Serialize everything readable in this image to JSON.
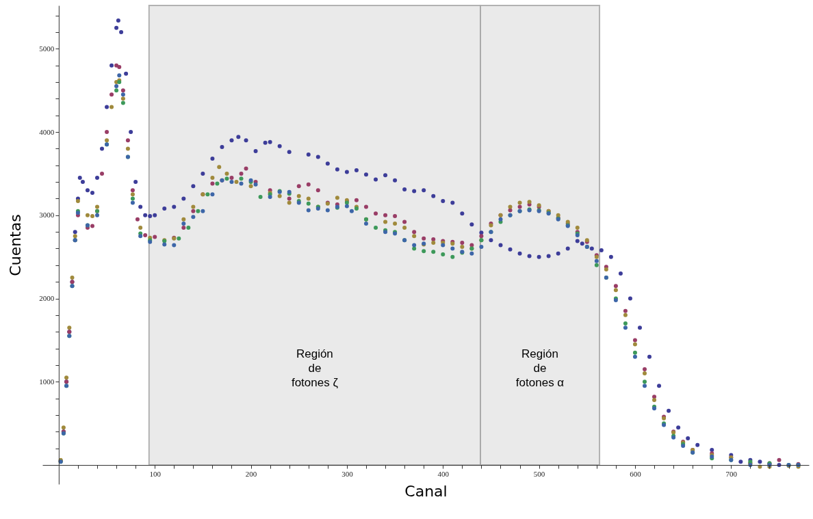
{
  "chart_data": {
    "type": "scatter",
    "xlabel": "Canal",
    "ylabel": "Cuentas",
    "marker": "circle",
    "grid": false,
    "xlim": [
      -17,
      781
    ],
    "ylim": [
      -230,
      5520
    ],
    "xticks": [
      {
        "value": 20,
        "label": null
      },
      {
        "value": 40,
        "label": null
      },
      {
        "value": 60,
        "label": null
      },
      {
        "value": 80,
        "label": null
      },
      100,
      {
        "value": 120,
        "label": null
      },
      {
        "value": 140,
        "label": null
      },
      {
        "value": 160,
        "label": null
      },
      {
        "value": 180,
        "label": null
      },
      200,
      {
        "value": 220,
        "label": null
      },
      {
        "value": 240,
        "label": null
      },
      {
        "value": 260,
        "label": null
      },
      {
        "value": 280,
        "label": null
      },
      300,
      {
        "value": 320,
        "label": null
      },
      {
        "value": 340,
        "label": null
      },
      {
        "value": 360,
        "label": null
      },
      {
        "value": 380,
        "label": null
      },
      400,
      {
        "value": 420,
        "label": null
      },
      {
        "value": 440,
        "label": null
      },
      {
        "value": 460,
        "label": null
      },
      {
        "value": 480,
        "label": null
      },
      500,
      {
        "value": 520,
        "label": null
      },
      {
        "value": 540,
        "label": null
      },
      {
        "value": 560,
        "label": null
      },
      {
        "value": 580,
        "label": null
      },
      600,
      {
        "value": 620,
        "label": null
      },
      {
        "value": 640,
        "label": null
      },
      {
        "value": 660,
        "label": null
      },
      {
        "value": 680,
        "label": null
      },
      700,
      {
        "value": 720,
        "label": null
      },
      {
        "value": 740,
        "label": null
      },
      {
        "value": 760,
        "label": null
      }
    ],
    "yticks": [
      {
        "value": 200,
        "label": null
      },
      {
        "value": 400,
        "label": null
      },
      {
        "value": 600,
        "label": null
      },
      {
        "value": 800,
        "label": null
      },
      1000,
      {
        "value": 1200,
        "label": null
      },
      {
        "value": 1400,
        "label": null
      },
      {
        "value": 1600,
        "label": null
      },
      {
        "value": 1800,
        "label": null
      },
      2000,
      {
        "value": 2200,
        "label": null
      },
      {
        "value": 2400,
        "label": null
      },
      {
        "value": 2600,
        "label": null
      },
      {
        "value": 2800,
        "label": null
      },
      3000,
      {
        "value": 3200,
        "label": null
      },
      {
        "value": 3400,
        "label": null
      },
      {
        "value": 3600,
        "label": null
      },
      {
        "value": 3800,
        "label": null
      },
      4000,
      {
        "value": 4200,
        "label": null
      },
      {
        "value": 4400,
        "label": null
      },
      {
        "value": 4600,
        "label": null
      },
      {
        "value": 4800,
        "label": null
      },
      5000,
      {
        "value": 5200,
        "label": null
      },
      {
        "value": 5400,
        "label": null
      }
    ],
    "bands": [
      {
        "axis": "x",
        "from": 94,
        "to": 439,
        "label": "Región\nde\nfotones ζ",
        "color": "#e8e8e8"
      },
      {
        "axis": "x",
        "from": 439,
        "to": 563,
        "label": "Región\nde\nfotones α",
        "color": "#e8e8e8"
      }
    ],
    "series": [
      {
        "color": "#3d3d99",
        "x": [
          2,
          5,
          8,
          11,
          14,
          17,
          20,
          22,
          25,
          30,
          35,
          40,
          45,
          50,
          55,
          60,
          62,
          65,
          70,
          75,
          80,
          85,
          90,
          95,
          100,
          110,
          120,
          130,
          140,
          150,
          160,
          170,
          180,
          187,
          195,
          205,
          215,
          220,
          230,
          240,
          260,
          270,
          280,
          290,
          300,
          310,
          320,
          330,
          340,
          350,
          360,
          370,
          380,
          390,
          400,
          410,
          420,
          430,
          440,
          450,
          460,
          470,
          480,
          490,
          500,
          510,
          520,
          530,
          540,
          545,
          555,
          565,
          575,
          585,
          595,
          605,
          615,
          625,
          635,
          645,
          655,
          665,
          680,
          700,
          710,
          720,
          730,
          740,
          750,
          770
        ],
        "values": [
          50,
          400,
          1000,
          1600,
          2200,
          2800,
          3200,
          3450,
          3400,
          3300,
          3270,
          3450,
          3800,
          4300,
          4800,
          5250,
          5340,
          5200,
          4700,
          4000,
          3400,
          3100,
          3000,
          2990,
          3000,
          3080,
          3100,
          3200,
          3350,
          3500,
          3680,
          3820,
          3900,
          3940,
          3900,
          3770,
          3870,
          3880,
          3830,
          3760,
          3730,
          3700,
          3620,
          3550,
          3520,
          3540,
          3490,
          3430,
          3480,
          3420,
          3310,
          3290,
          3300,
          3230,
          3170,
          3150,
          3020,
          2890,
          2790,
          2700,
          2640,
          2590,
          2540,
          2510,
          2500,
          2510,
          2540,
          2600,
          2690,
          2660,
          2600,
          2580,
          2500,
          2300,
          2000,
          1650,
          1300,
          950,
          650,
          450,
          320,
          240,
          180,
          120,
          40,
          60,
          40,
          10,
          0,
          0
        ]
      },
      {
        "color": "#993d66",
        "x": [
          2,
          5,
          8,
          11,
          14,
          17,
          20,
          30,
          35,
          40,
          45,
          50,
          55,
          60,
          63,
          67,
          72,
          77,
          82,
          90,
          100,
          120,
          130,
          140,
          150,
          160,
          170,
          180,
          190,
          195,
          205,
          220,
          240,
          250,
          260,
          270,
          280,
          290,
          300,
          310,
          320,
          330,
          340,
          350,
          360,
          370,
          380,
          390,
          400,
          410,
          420,
          430,
          440,
          450,
          460,
          470,
          480,
          490,
          500,
          510,
          520,
          530,
          540,
          550,
          560,
          570,
          580,
          590,
          600,
          610,
          620,
          630,
          640,
          650,
          660,
          680,
          700,
          720,
          740,
          750,
          770
        ],
        "values": [
          50,
          400,
          1000,
          1600,
          2200,
          2700,
          3000,
          2850,
          2870,
          3050,
          3500,
          4000,
          4450,
          4800,
          4780,
          4500,
          3900,
          3300,
          2950,
          2760,
          2740,
          2730,
          2850,
          3050,
          3250,
          3380,
          3420,
          3450,
          3500,
          3560,
          3400,
          3300,
          3200,
          3350,
          3370,
          3300,
          3150,
          3130,
          3170,
          3180,
          3100,
          3020,
          3000,
          2990,
          2920,
          2800,
          2720,
          2710,
          2690,
          2680,
          2670,
          2640,
          2750,
          2900,
          3000,
          3060,
          3100,
          3130,
          3100,
          3050,
          2970,
          2900,
          2800,
          2680,
          2520,
          2380,
          2150,
          1850,
          1500,
          1150,
          820,
          580,
          400,
          280,
          180,
          140,
          90,
          20,
          20,
          60,
          10
        ]
      },
      {
        "color": "#a08a3c",
        "x": [
          2,
          5,
          8,
          11,
          14,
          17,
          20,
          30,
          35,
          40,
          50,
          55,
          60,
          63,
          67,
          72,
          77,
          85,
          95,
          110,
          120,
          130,
          140,
          150,
          160,
          167,
          175,
          185,
          200,
          220,
          230,
          240,
          250,
          260,
          270,
          280,
          290,
          300,
          310,
          320,
          340,
          350,
          360,
          370,
          380,
          390,
          400,
          410,
          420,
          430,
          440,
          450,
          460,
          470,
          480,
          490,
          500,
          510,
          520,
          530,
          540,
          550,
          560,
          570,
          580,
          590,
          600,
          610,
          620,
          630,
          640,
          650,
          660,
          680,
          700,
          720,
          730,
          740,
          760,
          770
        ],
        "values": [
          60,
          450,
          1050,
          1650,
          2250,
          2750,
          3170,
          3000,
          2990,
          3100,
          3900,
          4300,
          4600,
          4620,
          4400,
          3800,
          3250,
          2850,
          2730,
          2700,
          2720,
          2950,
          3100,
          3250,
          3450,
          3580,
          3500,
          3400,
          3350,
          3270,
          3230,
          3150,
          3230,
          3200,
          3100,
          3140,
          3210,
          3180,
          3100,
          2950,
          2920,
          2900,
          2850,
          2750,
          2650,
          2670,
          2670,
          2660,
          2620,
          2600,
          2700,
          2880,
          3000,
          3100,
          3150,
          3160,
          3120,
          3050,
          3000,
          2920,
          2850,
          2700,
          2500,
          2350,
          2100,
          1800,
          1450,
          1100,
          780,
          560,
          390,
          270,
          180,
          120,
          90,
          20,
          -20,
          -20,
          -10,
          -20
        ]
      },
      {
        "color": "#3d995a",
        "x": [
          2,
          5,
          8,
          11,
          14,
          17,
          20,
          30,
          40,
          50,
          60,
          63,
          67,
          72,
          77,
          85,
          95,
          110,
          125,
          135,
          145,
          155,
          165,
          175,
          190,
          200,
          210,
          220,
          230,
          240,
          250,
          260,
          270,
          290,
          300,
          310,
          320,
          330,
          340,
          350,
          360,
          370,
          380,
          390,
          400,
          410,
          420,
          430,
          440,
          450,
          460,
          470,
          480,
          490,
          500,
          510,
          520,
          530,
          540,
          550,
          560,
          570,
          580,
          590,
          600,
          610,
          620,
          630,
          640,
          650,
          660,
          680,
          700,
          720,
          740,
          760,
          770
        ],
        "values": [
          40,
          380,
          950,
          1550,
          2150,
          2700,
          3050,
          2880,
          3050,
          3850,
          4500,
          4600,
          4350,
          3700,
          3200,
          2780,
          2700,
          2690,
          2720,
          2850,
          3050,
          3250,
          3380,
          3440,
          3440,
          3400,
          3220,
          3250,
          3290,
          3260,
          3170,
          3140,
          3100,
          3090,
          3150,
          3080,
          2950,
          2850,
          2820,
          2800,
          2700,
          2600,
          2570,
          2560,
          2530,
          2500,
          2550,
          2600,
          2700,
          2800,
          2920,
          3000,
          3050,
          3070,
          3060,
          3030,
          2960,
          2880,
          2780,
          2620,
          2400,
          2250,
          2000,
          1700,
          1350,
          1000,
          700,
          500,
          350,
          250,
          150,
          80,
          60,
          40,
          20,
          0,
          0
        ]
      },
      {
        "color": "#3d66a8",
        "x": [
          2,
          5,
          8,
          11,
          14,
          17,
          20,
          30,
          40,
          50,
          60,
          63,
          67,
          72,
          77,
          85,
          95,
          110,
          120,
          130,
          140,
          150,
          160,
          170,
          180,
          190,
          200,
          205,
          220,
          230,
          240,
          250,
          260,
          270,
          280,
          290,
          300,
          305,
          320,
          340,
          350,
          360,
          370,
          380,
          400,
          410,
          420,
          430,
          440,
          450,
          460,
          470,
          480,
          490,
          500,
          510,
          520,
          530,
          540,
          550,
          560,
          570,
          580,
          590,
          600,
          610,
          620,
          630,
          640,
          650,
          660,
          680,
          700,
          720,
          740,
          760,
          770
        ],
        "values": [
          40,
          380,
          950,
          1550,
          2150,
          2700,
          3030,
          2880,
          3000,
          3850,
          4550,
          4680,
          4450,
          3700,
          3150,
          2750,
          2680,
          2650,
          2640,
          2900,
          2980,
          3050,
          3250,
          3420,
          3400,
          3380,
          3420,
          3370,
          3220,
          3280,
          3280,
          3150,
          3060,
          3080,
          3060,
          3100,
          3110,
          3050,
          2900,
          2800,
          2780,
          2700,
          2640,
          2660,
          2640,
          2600,
          2560,
          2540,
          2620,
          2800,
          2950,
          3000,
          3050,
          3060,
          3050,
          3020,
          2950,
          2870,
          2760,
          2620,
          2450,
          2250,
          1980,
          1650,
          1300,
          950,
          680,
          480,
          330,
          230,
          150,
          100,
          60,
          0,
          0,
          0,
          0
        ]
      }
    ]
  }
}
